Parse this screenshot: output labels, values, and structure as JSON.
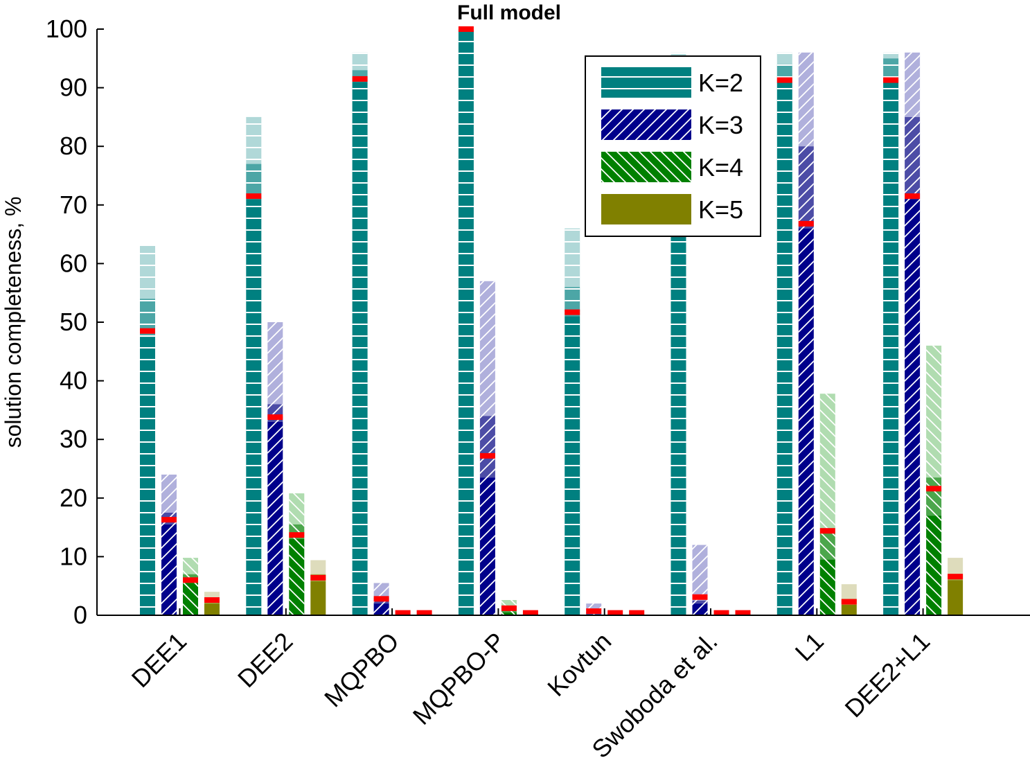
{
  "chart_data": {
    "type": "bar",
    "title": "Full model",
    "xlabel": "",
    "ylabel": "solution completeness, %",
    "ylim": [
      0,
      100
    ],
    "yticks": [
      0,
      10,
      20,
      30,
      40,
      50,
      60,
      70,
      80,
      90,
      100
    ],
    "grid": false,
    "legend_position": "top-right",
    "categories": [
      "DEE1",
      "DEE2",
      "MQPBO",
      "MQPBO-P",
      "Kovtun",
      "Swoboda et al.",
      "L1",
      "DEE2+L1"
    ],
    "series": [
      {
        "name": "K=2",
        "color": "#008080",
        "light": "#b0d8d8",
        "mid": "#4ca6a6",
        "hatch": "horizontal",
        "low": [
          47.5,
          71,
          91,
          100,
          51,
          65,
          91,
          91
        ],
        "mid_values": [
          54,
          77,
          93,
          100,
          56,
          95,
          94,
          95
        ],
        "high": [
          63,
          85,
          96,
          100,
          66,
          96,
          96,
          96
        ],
        "marker": [
          48.5,
          71.5,
          91.5,
          100,
          51.7,
          65,
          91.3,
          91.3
        ]
      },
      {
        "name": "K=3",
        "color": "#00008b",
        "light": "#b0b0dc",
        "mid": "#4c4ca6",
        "hatch": "forward",
        "low": [
          15.5,
          33,
          2,
          23.5,
          0,
          2,
          66,
          71
        ],
        "mid_values": [
          17.5,
          36,
          3,
          34,
          0.5,
          2.5,
          80,
          85
        ],
        "high": [
          24,
          50,
          5.5,
          57,
          2,
          12,
          96,
          96
        ],
        "marker": [
          16.3,
          33.8,
          2.8,
          27.2,
          0.7,
          3.1,
          66.8,
          71.5
        ]
      },
      {
        "name": "K=4",
        "color": "#008000",
        "light": "#b0dcb0",
        "mid": "#4ca64c",
        "hatch": "backward",
        "low": [
          5.5,
          13,
          0,
          0.5,
          0,
          0,
          9.5,
          17
        ],
        "mid_values": [
          7,
          15.5,
          0,
          1.5,
          0,
          0,
          14,
          23.5
        ],
        "high": [
          9.8,
          20.8,
          0.5,
          2.6,
          0.3,
          0.3,
          37.8,
          46
        ],
        "marker": [
          6,
          13.7,
          0.4,
          1.2,
          0.4,
          0.4,
          14.4,
          21.6
        ]
      },
      {
        "name": "K=5",
        "color": "#808000",
        "light": "#dedcbc",
        "mid": "#a6a64c",
        "hatch": "none",
        "low": [
          2,
          5.8,
          0,
          0,
          0,
          0,
          1.8,
          6
        ],
        "mid_values": [
          3,
          7,
          0,
          0,
          0,
          0,
          2.8,
          7
        ],
        "high": [
          4,
          9.4,
          0.3,
          0.5,
          0.3,
          0.3,
          5.3,
          9.8
        ],
        "marker": [
          2.6,
          6.4,
          0.4,
          0.4,
          0.4,
          0.4,
          2.3,
          6.6
        ]
      }
    ]
  }
}
